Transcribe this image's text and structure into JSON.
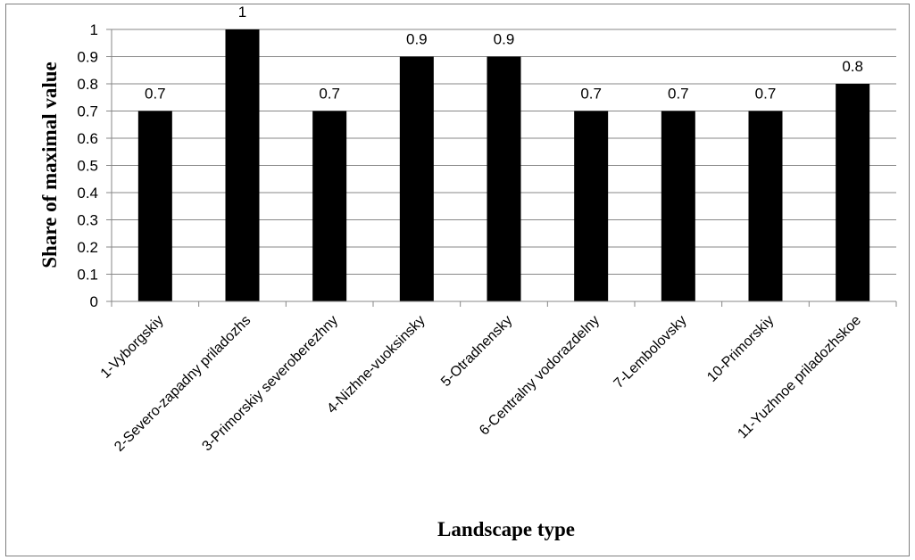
{
  "chart_data": {
    "type": "bar",
    "title": "",
    "xlabel": "Landscape type",
    "ylabel": "Share of maximal value",
    "ylim": [
      0,
      1
    ],
    "y_ticks": [
      "0",
      "0.1",
      "0.2",
      "0.3",
      "0.4",
      "0.5",
      "0.6",
      "0.7",
      "0.8",
      "0.9",
      "1"
    ],
    "grid": true,
    "legend": "none",
    "bar_color": "#000000",
    "categories": [
      "1-Vyborgskiy",
      "2-Severo-zapadny priladozhs",
      "3-Primorskiy severoberezhny",
      "4-Nizhne-vuoksinsky",
      "5-Otradnensky",
      "6-Centralny vodorazdelny",
      "7-Lembolovsky",
      "10-Primorskiy",
      "11-Yuzhnoe priladozhskoe"
    ],
    "values": [
      0.7,
      1,
      0.7,
      0.9,
      0.9,
      0.7,
      0.7,
      0.7,
      0.8
    ],
    "data_labels": [
      "0.7",
      "1",
      "0.7",
      "0.9",
      "0.9",
      "0.7",
      "0.7",
      "0.7",
      "0.8"
    ]
  }
}
